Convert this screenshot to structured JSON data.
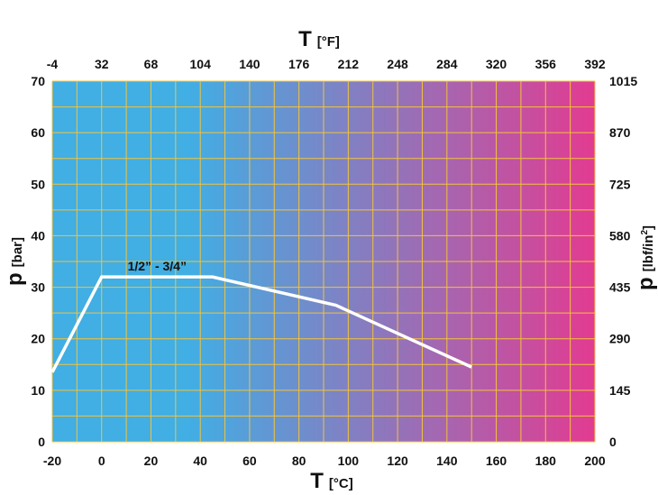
{
  "chart_data": {
    "type": "line",
    "x_bottom": {
      "title_symbol": "T",
      "title_unit": "[°C]",
      "range": [
        -20,
        200
      ],
      "ticks": [
        "-20",
        "0",
        "20",
        "40",
        "60",
        "80",
        "100",
        "120",
        "140",
        "160",
        "180",
        "200"
      ]
    },
    "x_top": {
      "title_symbol": "T",
      "title_unit": "[°F]",
      "range": [
        -4,
        392
      ],
      "ticks": [
        "-4",
        "32",
        "68",
        "104",
        "140",
        "176",
        "212",
        "248",
        "284",
        "320",
        "356",
        "392"
      ]
    },
    "y_left": {
      "title_symbol": "p",
      "title_unit": "[bar]",
      "range": [
        0,
        70
      ],
      "ticks": [
        "0",
        "10",
        "20",
        "30",
        "40",
        "50",
        "60",
        "70"
      ]
    },
    "y_right": {
      "title_symbol": "p",
      "title_unit_main": "[lbf/in",
      "title_unit_sup": "2",
      "title_unit_end": "]",
      "range": [
        0,
        1015
      ],
      "ticks": [
        "0",
        "145",
        "290",
        "435",
        "580",
        "725",
        "870",
        "1015"
      ]
    },
    "series": [
      {
        "name": "1/2” - 3/4”",
        "x": [
          -20,
          0,
          45,
          95,
          150
        ],
        "y": [
          13.5,
          32,
          32,
          26.5,
          14.5
        ]
      }
    ],
    "grid": true,
    "gradient": {
      "start": "#41aee4",
      "end": "#e23b91"
    },
    "grid_color": "#f2c33a",
    "line_color": "#ffffff"
  }
}
